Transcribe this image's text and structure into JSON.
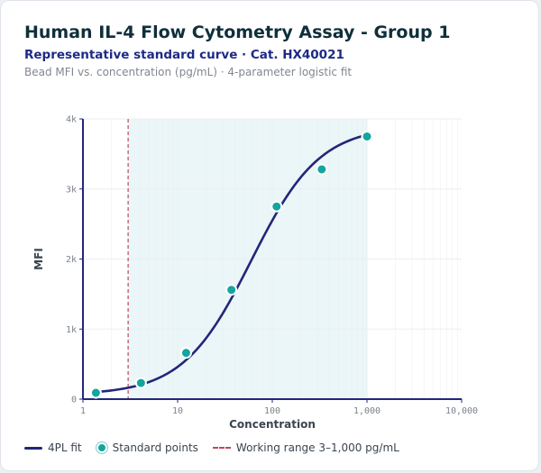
{
  "title": "Human IL-4 Flow Cytometry Assay - Group 1",
  "subtitle": "Representative standard curve · Cat. HX40021",
  "caption": "Bead MFI vs. concentration (pg/mL) · 4-parameter logistic fit",
  "colors": {
    "curve": "#22267a",
    "points": "#13a59f",
    "range_line": "#c0475b",
    "range_fill": "#eaf6f7",
    "axis": "#22267a",
    "grid": "#eceef2"
  },
  "legend": {
    "fit": "4PL fit",
    "points": "Standard points",
    "range": "Working range 3–1,000 pg/mL"
  },
  "chart_data": {
    "type": "scatter",
    "xscale": "log",
    "xlabel": "Concentration",
    "ylabel": "MFI",
    "xlim": [
      1,
      10000
    ],
    "ylim": [
      0,
      4000
    ],
    "x_ticks": [
      1,
      10,
      100,
      1000,
      10000
    ],
    "x_tick_labels": [
      "1",
      "10",
      "100",
      "1,000",
      "10,000"
    ],
    "y_ticks": [
      0,
      1000,
      2000,
      3000,
      4000
    ],
    "y_tick_labels": [
      "0",
      "1k",
      "2k",
      "3k",
      "4k"
    ],
    "grid": true,
    "legend_position": "bottom",
    "working_range": [
      3,
      1000
    ],
    "series": [
      {
        "name": "Standard points",
        "kind": "points",
        "x": [
          1.37,
          4.1,
          12.3,
          37,
          111,
          333,
          1000
        ],
        "y": [
          90,
          230,
          660,
          1560,
          2750,
          3280,
          3750
        ]
      },
      {
        "name": "4PL fit",
        "kind": "line",
        "params": {
          "bottom": 60,
          "top": 3900,
          "ec50": 60,
          "hill": 1.2
        },
        "x_range": [
          1.37,
          1000
        ]
      }
    ]
  }
}
